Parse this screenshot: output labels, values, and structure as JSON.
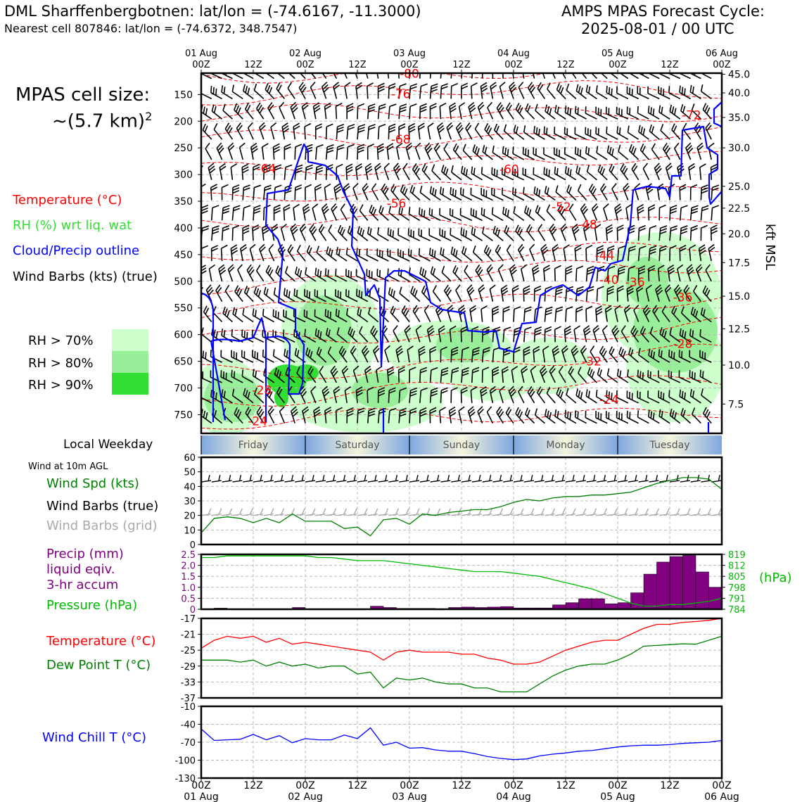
{
  "header": {
    "station": "DML Sharffenbergbotnen: lat/lon = (-74.6167, -11.3000)",
    "nearest": "Nearest cell 807846: lat/lon = (-74.6372, 348.7547)",
    "cycle_line1": "AMPS MPAS Forecast Cycle:",
    "cycle_line2": "2025-08-01 / 00 UTC"
  },
  "colors": {
    "temperature": "#ff0000",
    "rh": "#33dd33",
    "cloud": "#0000ff",
    "wind_speed": "#008000",
    "pressure": "#00bb00",
    "precip": "#800080",
    "dewpoint": "#008000",
    "windchill": "#0000ff",
    "grid_barbs": "#aaaaaa",
    "rh70": "#ccffcc",
    "rh80": "#99ee99",
    "rh90": "#33dd33"
  },
  "legend": {
    "cell_size_line1": "MPAS cell size:",
    "cell_size_line2": "~(5.7 km)",
    "cell_size_sup": "2",
    "temperature": "Temperature (°C)",
    "rh": "RH (%) wrt liq. wat",
    "cloud": "Cloud/Precip outline",
    "barbs": "Wind Barbs (kts) (true)",
    "rh70": "RH > 70%",
    "rh80": "RH > 80%",
    "rh90": "RH > 90%",
    "weekday": "Local Weekday",
    "wind_title": "Wind at 10m AGL",
    "wind_spd": "Wind Spd (kts)",
    "wind_barbs_true": "Wind Barbs (true)",
    "wind_barbs_grid": "Wind Barbs (grid)",
    "precip1": "Precip (mm)",
    "precip2": "liquid eqiv.",
    "precip3": "3-hr accum",
    "pressure": "Pressure (hPa)",
    "temp2": "Temperature (°C)",
    "dewpoint": "Dew Point T (°C)",
    "windchill": "Wind Chill T (°C)",
    "hpa_unit": "(hPa)",
    "kft_label": "kft MSL"
  },
  "time_axis": {
    "top_days": [
      "01 Aug",
      "02 Aug",
      "03 Aug",
      "04 Aug",
      "05 Aug",
      "06 Aug"
    ],
    "hour_labels": [
      "00Z",
      "12Z",
      "00Z",
      "12Z",
      "00Z",
      "12Z",
      "00Z",
      "12Z",
      "00Z",
      "12Z",
      "00Z"
    ]
  },
  "weekdays": [
    "Friday",
    "Saturday",
    "Sunday",
    "Monday",
    "Tuesday"
  ],
  "chart_data": [
    {
      "type": "heatmap",
      "name": "cross-section",
      "y_axis_left": {
        "ticks": [
          150,
          200,
          250,
          300,
          350,
          400,
          450,
          500,
          550,
          600,
          650,
          700,
          750
        ],
        "ylim": [
          785,
          110
        ],
        "unit": "hPa"
      },
      "y_axis_right": {
        "ticks": [
          "45.0",
          "40.0",
          "35.0",
          "30.0",
          "25.0",
          "22.5",
          "20.0",
          "17.5",
          "15.0",
          "12.5",
          "10.0",
          "7.5"
        ],
        "pressure_hPa": [
          112,
          147,
          193,
          250,
          322,
          363,
          411,
          465,
          528,
          589,
          657,
          730
        ],
        "label": "kft MSL"
      },
      "temperature_labels": [
        {
          "text": "-80",
          "hour": 48,
          "p": 112
        },
        {
          "text": "-76",
          "hour": 46,
          "p": 150
        },
        {
          "text": "-72",
          "hour": 113,
          "p": 190
        },
        {
          "text": "-68",
          "hour": 46,
          "p": 235
        },
        {
          "text": "-64",
          "hour": 15,
          "p": 290
        },
        {
          "text": "-60",
          "hour": 71,
          "p": 291
        },
        {
          "text": "-56",
          "hour": 45,
          "p": 355
        },
        {
          "text": "-52",
          "hour": 83,
          "p": 362
        },
        {
          "text": "-48",
          "hour": 89,
          "p": 395
        },
        {
          "text": "-44",
          "hour": 93,
          "p": 453
        },
        {
          "text": "-40",
          "hour": 94,
          "p": 498
        },
        {
          "text": "-36",
          "hour": 100,
          "p": 503
        },
        {
          "text": "-36",
          "hour": 111,
          "p": 531
        },
        {
          "text": "-32",
          "hour": 90,
          "p": 651
        },
        {
          "text": "-28",
          "hour": 14,
          "p": 705
        },
        {
          "text": "-28",
          "hour": 111,
          "p": 618
        },
        {
          "text": "-24",
          "hour": 13,
          "p": 763
        },
        {
          "text": "-24",
          "hour": 94,
          "p": 723
        }
      ]
    },
    {
      "type": "line",
      "name": "wind-speed-10m",
      "ylim": [
        0,
        60
      ],
      "yticks": [
        0,
        10,
        20,
        30,
        40,
        50,
        60
      ],
      "x_hours": [
        0,
        3,
        6,
        9,
        12,
        15,
        18,
        21,
        24,
        27,
        30,
        33,
        36,
        39,
        42,
        45,
        48,
        51,
        54,
        57,
        60,
        63,
        66,
        69,
        72,
        75,
        78,
        81,
        84,
        87,
        90,
        93,
        96,
        99,
        102,
        105,
        108,
        111,
        114,
        117,
        120
      ],
      "values": [
        8,
        18,
        19,
        18,
        15,
        18,
        15,
        21,
        16,
        16,
        16,
        11,
        12,
        6,
        17,
        18,
        14,
        21,
        20,
        22,
        23,
        24,
        24,
        26,
        29,
        31,
        30,
        32,
        33,
        33,
        34,
        34,
        35,
        36,
        39,
        42,
        44,
        46,
        46,
        45,
        38
      ]
    },
    {
      "type": "bar",
      "name": "precip-3hr",
      "ylim": [
        0,
        2.5
      ],
      "yticks": [
        0,
        0.5,
        1.0,
        1.5,
        2.0,
        2.5
      ],
      "x_hours": [
        0,
        3,
        6,
        9,
        12,
        15,
        18,
        21,
        24,
        27,
        30,
        33,
        36,
        39,
        42,
        45,
        48,
        51,
        54,
        57,
        60,
        63,
        66,
        69,
        72,
        75,
        78,
        81,
        84,
        87,
        90,
        93,
        96,
        99,
        102,
        105,
        108,
        111,
        114,
        117
      ],
      "values": [
        0.0,
        0.05,
        0.0,
        0.0,
        0.0,
        0.0,
        0.0,
        0.08,
        0.0,
        0.0,
        0.0,
        0.0,
        0.0,
        0.14,
        0.08,
        0.04,
        0.04,
        0.04,
        0.0,
        0.08,
        0.1,
        0.08,
        0.1,
        0.12,
        0.06,
        0.06,
        0.06,
        0.2,
        0.3,
        0.48,
        0.48,
        0.25,
        0.3,
        0.75,
        1.6,
        2.15,
        2.4,
        2.45,
        1.7,
        1.0
      ]
    },
    {
      "type": "line",
      "name": "pressure",
      "ylim": [
        784,
        819
      ],
      "yticks": [
        784,
        791,
        798,
        805,
        812,
        819
      ],
      "x_hours": [
        0,
        3,
        6,
        9,
        12,
        15,
        18,
        21,
        24,
        27,
        30,
        33,
        36,
        39,
        42,
        45,
        48,
        51,
        54,
        57,
        60,
        63,
        66,
        69,
        72,
        75,
        78,
        81,
        84,
        87,
        90,
        93,
        96,
        99,
        102,
        105,
        108,
        111,
        114,
        117,
        120
      ],
      "values": [
        817,
        817,
        818,
        818,
        818,
        818,
        818,
        818,
        818,
        817,
        817,
        816,
        815,
        815,
        815,
        814,
        813,
        812,
        811,
        810,
        809,
        808,
        808,
        808,
        807,
        806,
        805,
        803,
        801,
        799,
        797,
        794,
        791,
        788,
        786,
        786,
        787,
        787,
        788,
        789,
        791
      ]
    },
    {
      "type": "line",
      "name": "temperature-dewpoint",
      "ylim": [
        -37,
        -17
      ],
      "yticks": [
        -37,
        -33,
        -29,
        -25,
        -21,
        -17
      ],
      "x_hours": [
        0,
        3,
        6,
        9,
        12,
        15,
        18,
        21,
        24,
        27,
        30,
        33,
        36,
        39,
        42,
        45,
        48,
        51,
        54,
        57,
        60,
        63,
        66,
        69,
        72,
        75,
        78,
        81,
        84,
        87,
        90,
        93,
        96,
        99,
        102,
        105,
        108,
        111,
        114,
        117,
        120
      ],
      "series": [
        {
          "name": "Temperature (°C)",
          "values": [
            -24.5,
            -22.5,
            -21.5,
            -22,
            -21.5,
            -23,
            -22,
            -23.5,
            -23,
            -23.5,
            -24,
            -24.5,
            -25,
            -25.5,
            -27.5,
            -25.5,
            -25,
            -25.5,
            -25.5,
            -25.5,
            -26,
            -26,
            -27,
            -27.5,
            -28.5,
            -28.5,
            -28,
            -26.5,
            -25,
            -24,
            -23,
            -22.5,
            -22.5,
            -21,
            -19.5,
            -18.5,
            -18.5,
            -18,
            -17.8,
            -17.5,
            -17
          ]
        },
        {
          "name": "Dew Point T (°C)",
          "values": [
            -27.5,
            -27.5,
            -27.5,
            -28,
            -27.5,
            -29,
            -28,
            -29,
            -28.5,
            -29.5,
            -29,
            -29,
            -31,
            -30.5,
            -34.5,
            -32,
            -32.5,
            -32,
            -33,
            -33.5,
            -33.5,
            -34.5,
            -34.5,
            -35.5,
            -35.5,
            -35.5,
            -33.5,
            -31.5,
            -30,
            -29,
            -28.5,
            -28.5,
            -27.5,
            -26,
            -24,
            -23.8,
            -23.6,
            -23.4,
            -23.5,
            -22.5,
            -21.5
          ]
        }
      ]
    },
    {
      "type": "line",
      "name": "wind-chill",
      "ylim": [
        -130,
        -10
      ],
      "yticks": [
        -130,
        -100,
        -70,
        -40,
        -10
      ],
      "x_hours": [
        0,
        3,
        6,
        9,
        12,
        15,
        18,
        21,
        24,
        27,
        30,
        33,
        36,
        39,
        42,
        45,
        48,
        51,
        54,
        57,
        60,
        63,
        66,
        69,
        72,
        75,
        78,
        81,
        84,
        87,
        90,
        93,
        96,
        99,
        102,
        105,
        108,
        111,
        114,
        117,
        120
      ],
      "values": [
        -48,
        -67,
        -66,
        -65,
        -57,
        -66,
        -59,
        -71,
        -64,
        -66,
        -66,
        -58,
        -64,
        -46,
        -75,
        -70,
        -80,
        -79,
        -83,
        -85,
        -85,
        -89,
        -94,
        -97,
        -99,
        -98,
        -93,
        -90,
        -88,
        -85,
        -84,
        -81,
        -78,
        -76,
        -75,
        -75,
        -74,
        -72,
        -71,
        -70,
        -67
      ]
    }
  ]
}
